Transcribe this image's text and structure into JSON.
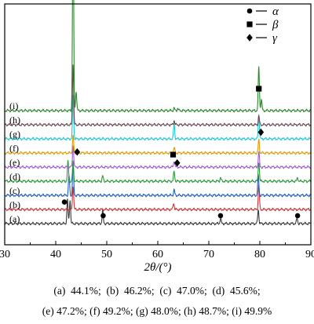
{
  "chart_data": {
    "type": "line",
    "xlabel": "2θ/(°)",
    "ylabel": "",
    "xlim": [
      30,
      90
    ],
    "xticks": [
      "30",
      "40",
      "50",
      "60",
      "70",
      "80",
      "90"
    ],
    "grid": false,
    "legend_position": "top-right",
    "legend": [
      {
        "symbol": "circle",
        "label": "α"
      },
      {
        "symbol": "square",
        "label": "β"
      },
      {
        "symbol": "diamond",
        "label": "γ"
      }
    ],
    "series": [
      {
        "name": "(a)",
        "color": "#3a3a3a",
        "peaks": [
          [
            42.3,
            0.55
          ],
          [
            42.8,
            0.55
          ],
          [
            49.2,
            0.3
          ],
          [
            72.3,
            0.12
          ],
          [
            79.7,
            0.32
          ],
          [
            87.3,
            0.12
          ]
        ]
      },
      {
        "name": "(b)",
        "color": "#d0343a",
        "peaks": [
          [
            43.4,
            0.55
          ],
          [
            63.1,
            0.15
          ],
          [
            79.8,
            0.55
          ]
        ]
      },
      {
        "name": "(c)",
        "color": "#1f5fc6",
        "peaks": [
          [
            42.6,
            0.45
          ],
          [
            43.4,
            0.7
          ],
          [
            63.2,
            0.12
          ],
          [
            79.7,
            0.45
          ]
        ]
      },
      {
        "name": "(d)",
        "color": "#2a9a3a",
        "peaks": [
          [
            42.4,
            0.45
          ],
          [
            43.4,
            0.45
          ],
          [
            49.2,
            0.12
          ],
          [
            63.2,
            0.22
          ],
          [
            72.3,
            0.08
          ],
          [
            79.8,
            0.45
          ],
          [
            87.4,
            0.08
          ]
        ]
      },
      {
        "name": "(e)",
        "color": "#a05ed6",
        "peaks": [
          [
            43.4,
            0.5
          ],
          [
            63.2,
            0.15
          ],
          [
            79.8,
            0.35
          ]
        ]
      },
      {
        "name": "(f)",
        "color": "#e29b00",
        "peaks": [
          [
            43.4,
            0.4
          ],
          [
            63.2,
            0.12
          ],
          [
            79.8,
            0.3
          ]
        ]
      },
      {
        "name": "(g)",
        "color": "#1ecad4",
        "peaks": [
          [
            43.4,
            1.0
          ],
          [
            63.2,
            0.35
          ],
          [
            79.8,
            0.55
          ]
        ]
      },
      {
        "name": "(h)",
        "color": "#6b4a52",
        "peaks": [
          [
            43.4,
            1.4
          ],
          [
            63.2,
            0.1
          ],
          [
            79.8,
            0.2
          ]
        ]
      },
      {
        "name": "(i)",
        "color": "#2d8a2d",
        "peaks": [
          [
            43.4,
            4.5
          ],
          [
            44.0,
            0.45
          ],
          [
            63.2,
            0.05
          ],
          [
            63.9,
            0.05
          ],
          [
            79.8,
            1.0
          ],
          [
            80.3,
            0.25
          ]
        ]
      }
    ],
    "annotations": [
      {
        "marker": "square",
        "x": 43.6,
        "y": 5.95
      },
      {
        "marker": "diamond",
        "x": 44.2,
        "y": 1.63
      },
      {
        "marker": "square",
        "x": 63.0,
        "y": 1.57
      },
      {
        "marker": "diamond",
        "x": 63.8,
        "y": 1.38
      },
      {
        "marker": "square",
        "x": 79.8,
        "y": 3.07
      },
      {
        "marker": "diamond",
        "x": 80.2,
        "y": 2.08
      },
      {
        "marker": "circle",
        "x": 41.7,
        "y": 0.49
      },
      {
        "marker": "circle",
        "x": 49.3,
        "y": 0.18
      },
      {
        "marker": "circle",
        "x": 72.3,
        "y": 0.18
      },
      {
        "marker": "circle",
        "x": 87.4,
        "y": 0.18
      }
    ]
  },
  "caption": {
    "line1": "(a)  44.1%;  (b)  46.2%;  (c)  47.0%;  (d)  45.6%;",
    "line2": "(e) 47.2%; (f) 49.2%; (g) 48.0%; (h) 48.7%; (i) 49.9%"
  }
}
